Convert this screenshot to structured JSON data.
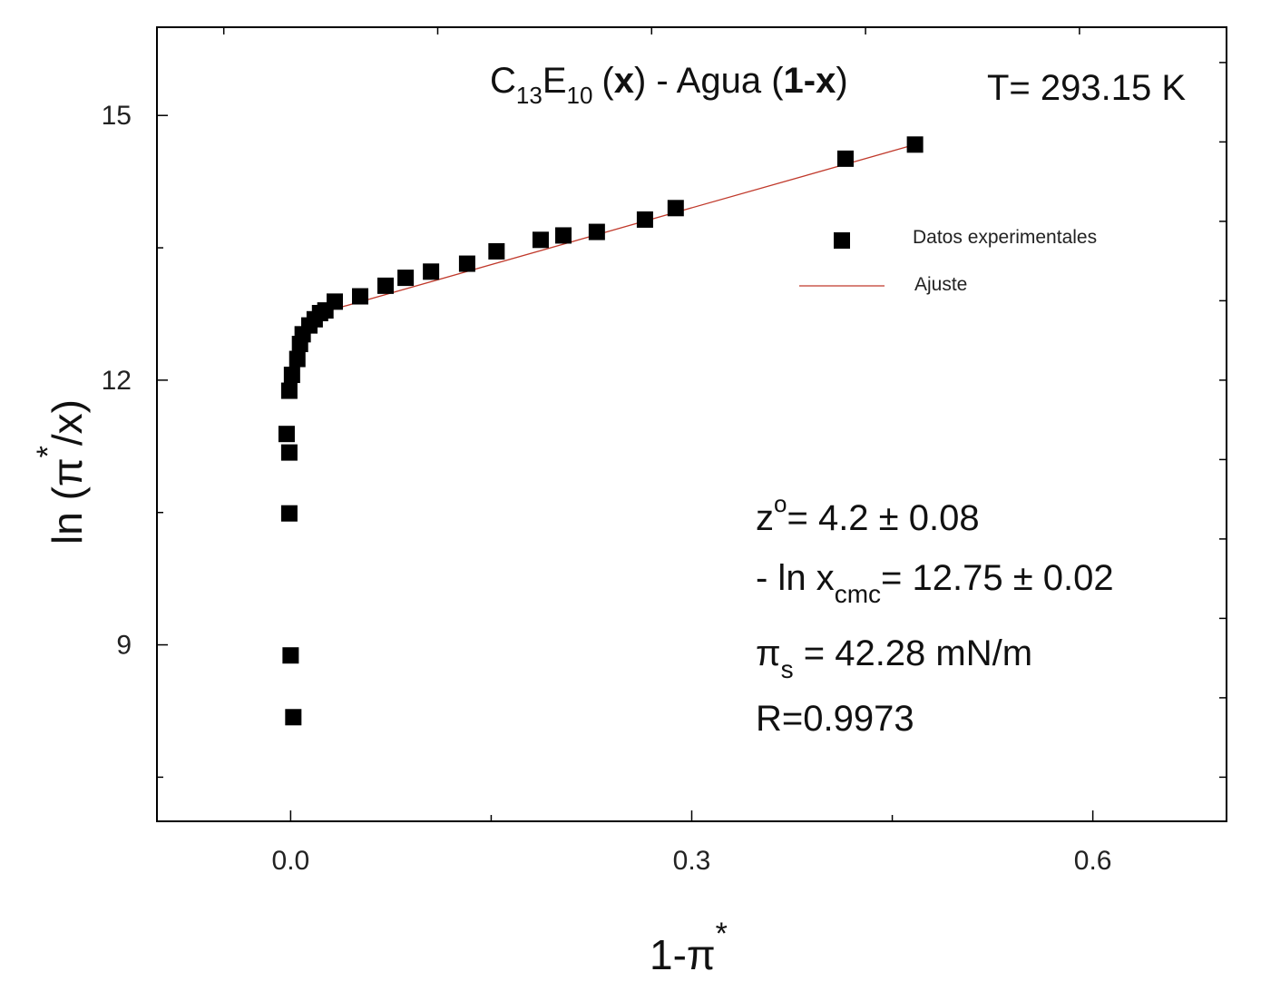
{
  "chart_data": {
    "type": "scatter",
    "title": {
      "c": "C",
      "c_sub": "13",
      "e": "E",
      "e_sub": "10",
      "x_bold": "x",
      "mid": ") - Agua (",
      "one_x_bold": "1-x",
      "open": "(",
      "close": ")"
    },
    "temperature_label": "T= 293.15 K",
    "xlabel": {
      "main": "1-π",
      "sup": "*"
    },
    "ylabel": {
      "pre": "ln (π",
      "sup": "*",
      "post": "/x)"
    },
    "xlim": [
      -0.1,
      0.7
    ],
    "ylim": [
      7,
      16
    ],
    "xticks": [
      {
        "value": 0.0,
        "label": "0.0"
      },
      {
        "value": 0.3,
        "label": "0.3"
      },
      {
        "value": 0.6,
        "label": "0.6"
      }
    ],
    "yticks": [
      {
        "value": 9,
        "label": "9"
      },
      {
        "value": 12,
        "label": "12"
      },
      {
        "value": 15,
        "label": "15"
      }
    ],
    "legend": {
      "placement": "top-right",
      "entries": [
        "Datos experimentales",
        "Ajuste"
      ]
    },
    "series": [
      {
        "name": "Datos experimentales",
        "marker": "square",
        "color": "#000000",
        "x": [
          0.002,
          0.0,
          -0.001,
          -0.001,
          -0.003,
          -0.001,
          0.001,
          0.005,
          0.007,
          0.009,
          0.014,
          0.018,
          0.022,
          0.026,
          0.033,
          0.052,
          0.071,
          0.086,
          0.105,
          0.132,
          0.154,
          0.187,
          0.204,
          0.229,
          0.265,
          0.288,
          0.415,
          0.467
        ],
        "y": [
          8.18,
          8.88,
          10.49,
          11.18,
          11.39,
          11.88,
          12.06,
          12.24,
          12.41,
          12.52,
          12.62,
          12.69,
          12.76,
          12.79,
          12.89,
          12.95,
          13.07,
          13.16,
          13.23,
          13.32,
          13.46,
          13.59,
          13.64,
          13.68,
          13.82,
          13.95,
          14.51,
          14.67
        ]
      },
      {
        "name": "Ajuste",
        "type": "line",
        "color": "#c0392b",
        "x": [
          0.022,
          0.467
        ],
        "y": [
          12.76,
          14.67
        ]
      }
    ],
    "annotations": {
      "z": {
        "a": "z",
        "sup": "o",
        "b": "= 4.2 ± 0.08"
      },
      "lnx": {
        "a": "- ln x",
        "sub": "cmc",
        "b": "= 12.75 ± 0.02"
      },
      "pis": {
        "a": "π",
        "sub": "s",
        "b": " =  42.28 mN/m"
      },
      "r": "R=0.9973"
    }
  }
}
